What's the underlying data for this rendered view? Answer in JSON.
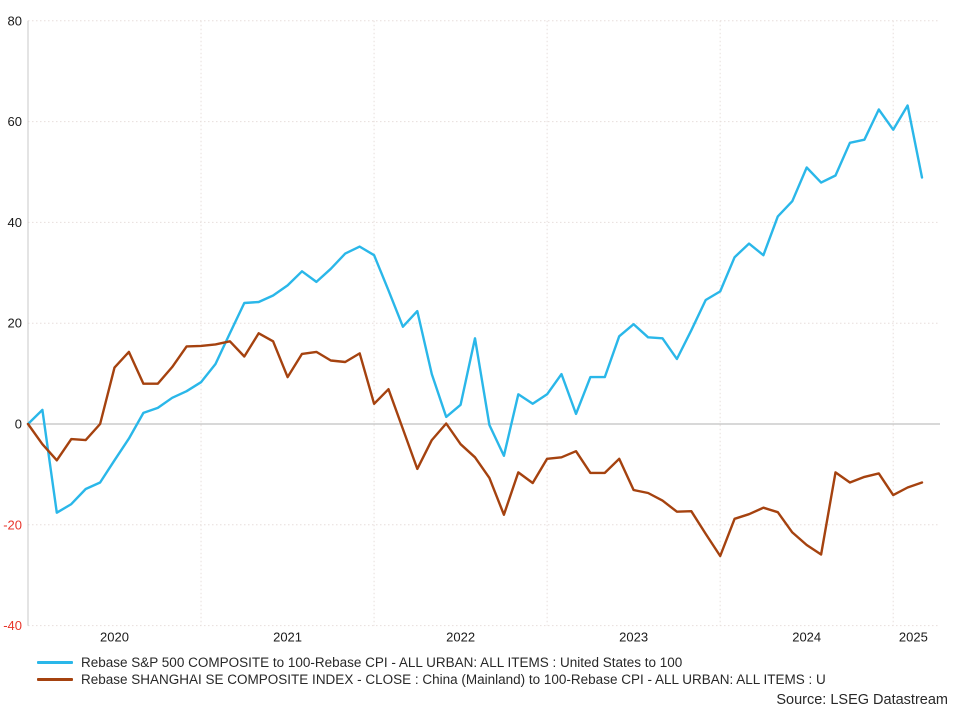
{
  "source": "Source: LSEG Datastream",
  "chart_data": {
    "type": "line",
    "title": "",
    "xlabel": "",
    "ylabel": "",
    "x_unit": "month",
    "months": [
      "2020-01",
      "2020-02",
      "2020-03",
      "2020-04",
      "2020-05",
      "2020-06",
      "2020-07",
      "2020-08",
      "2020-09",
      "2020-10",
      "2020-11",
      "2020-12",
      "2021-01",
      "2021-02",
      "2021-03",
      "2021-04",
      "2021-05",
      "2021-06",
      "2021-07",
      "2021-08",
      "2021-09",
      "2021-10",
      "2021-11",
      "2021-12",
      "2022-01",
      "2022-02",
      "2022-03",
      "2022-04",
      "2022-05",
      "2022-06",
      "2022-07",
      "2022-08",
      "2022-09",
      "2022-10",
      "2022-11",
      "2022-12",
      "2023-01",
      "2023-02",
      "2023-03",
      "2023-04",
      "2023-05",
      "2023-06",
      "2023-07",
      "2023-08",
      "2023-09",
      "2023-10",
      "2023-11",
      "2023-12",
      "2024-01",
      "2024-02",
      "2024-03",
      "2024-04",
      "2024-05",
      "2024-06",
      "2024-07",
      "2024-08",
      "2024-09",
      "2024-10",
      "2024-11",
      "2024-12",
      "2025-01",
      "2025-02",
      "2025-03"
    ],
    "series": [
      {
        "name": "Rebase S&P 500 COMPOSITE to 100-Rebase CPI - ALL URBAN: ALL ITEMS : United States to 100",
        "color": "#2ab7e9",
        "values": [
          0,
          2.8,
          -17.6,
          -15.9,
          -12.9,
          -11.6,
          -7.2,
          -2.9,
          2.2,
          3.2,
          5.2,
          6.5,
          8.3,
          11.9,
          18.0,
          24.0,
          24.2,
          25.5,
          27.5,
          30.3,
          28.2,
          30.8,
          33.8,
          35.2,
          33.5,
          26.5,
          19.3,
          22.4,
          9.9,
          1.4,
          3.8,
          17.0,
          -0.2,
          -6.3,
          5.9,
          4.0,
          5.9,
          9.9,
          2.0,
          9.3,
          9.3,
          17.4,
          19.8,
          17.2,
          17.0,
          12.9,
          18.6,
          24.6,
          26.3,
          33.1,
          35.8,
          33.5,
          41.2,
          44.2,
          50.9,
          47.9,
          49.3,
          55.8,
          56.4,
          62.4,
          58.4,
          63.2,
          48.9
        ]
      },
      {
        "name": "Rebase SHANGHAI SE COMPOSITE INDEX - CLOSE : China (Mainland) to 100-Rebase CPI - ALL URBAN: ALL ITEMS : U",
        "color": "#a5420f",
        "values": [
          0,
          -4.0,
          -7.2,
          -3.0,
          -3.2,
          0.0,
          11.2,
          14.3,
          8.0,
          8.0,
          11.3,
          15.4,
          15.5,
          15.8,
          16.4,
          13.4,
          18.0,
          16.4,
          9.3,
          13.9,
          14.3,
          12.6,
          12.3,
          14.0,
          4.0,
          6.9,
          -1.0,
          -8.9,
          -3.2,
          0.1,
          -4.0,
          -6.6,
          -10.7,
          -18.0,
          -9.6,
          -11.7,
          -6.9,
          -6.6,
          -5.4,
          -9.7,
          -9.7,
          -6.9,
          -13.1,
          -13.7,
          -15.2,
          -17.4,
          -17.3,
          -21.8,
          -26.2,
          -18.8,
          -17.9,
          -16.6,
          -17.5,
          -21.5,
          -24.0,
          -25.9,
          -9.6,
          -11.6,
          -10.5,
          -9.8,
          -14.1,
          -12.6,
          -11.6
        ]
      }
    ],
    "ylim": [
      -40,
      80
    ],
    "y_ticks": [
      80,
      60,
      40,
      20,
      0,
      -20,
      -40
    ],
    "x_tick_labels": [
      "2020",
      "2021",
      "2022",
      "2023",
      "2024",
      "2025"
    ],
    "x_tick_positions": [
      6,
      18,
      30,
      42,
      54,
      61.4
    ],
    "year_gridline_positions": [
      12,
      24,
      36,
      48,
      60
    ],
    "grid": "dotted horizontal at y ticks, dotted vertical at Jan of each year",
    "legend_position": "bottom-left",
    "colors": {
      "positive_tick": "#1a1a1a",
      "negative_tick": "#e8352b",
      "grid": "#e7dedb",
      "zero_line": "#b0b0b0",
      "axis_spine": "#c9c9c9",
      "background": "#ffffff"
    }
  }
}
